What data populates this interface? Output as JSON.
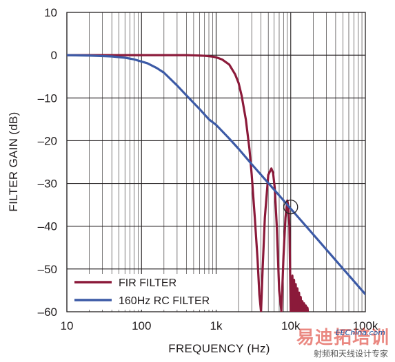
{
  "chart_data": {
    "type": "line",
    "title": "",
    "xlabel": "FREQUENCY (Hz)",
    "ylabel": "FILTER GAIN (dB)",
    "xscale": "log",
    "xlim": [
      10,
      100000
    ],
    "ylim": [
      -60,
      10
    ],
    "xticks": [
      {
        "value": 10,
        "label": "10"
      },
      {
        "value": 100,
        "label": "100"
      },
      {
        "value": 1000,
        "label": "1k"
      },
      {
        "value": 10000,
        "label": "10k"
      },
      {
        "value": 100000,
        "label": "100k"
      }
    ],
    "yticks": [
      {
        "value": 10,
        "label": "10"
      },
      {
        "value": 0,
        "label": "0"
      },
      {
        "value": -10,
        "label": "–10"
      },
      {
        "value": -20,
        "label": "–20"
      },
      {
        "value": -30,
        "label": "–30"
      },
      {
        "value": -40,
        "label": "–40"
      },
      {
        "value": -50,
        "label": "–50"
      },
      {
        "value": -60,
        "label": "–60"
      }
    ],
    "grid": true,
    "legend_position": "bottom-left",
    "series": [
      {
        "name": "FIR FILTER",
        "color": "#8b1a3a",
        "x": [
          10,
          50,
          100,
          200,
          300,
          400,
          500,
          600,
          700,
          800,
          900,
          1000,
          1200,
          1500,
          1800,
          2000,
          2200,
          2500,
          2800,
          3000,
          3300,
          3600,
          3800,
          4000,
          4200,
          4500,
          5000,
          5500,
          5800,
          6100,
          6500,
          7000,
          7500,
          8000,
          8500,
          9000,
          9300,
          9600,
          10000
        ],
        "values": [
          0,
          0,
          0,
          0,
          0,
          0,
          -0.05,
          -0.1,
          -0.15,
          -0.25,
          -0.35,
          -0.5,
          -1,
          -2.2,
          -4.5,
          -6.5,
          -9.5,
          -15,
          -22,
          -28,
          -38,
          -48,
          -56,
          -60,
          -50,
          -38,
          -28,
          -26.5,
          -27.5,
          -31,
          -40,
          -55,
          -60,
          -47,
          -38,
          -34,
          -35.5,
          -40,
          -60
        ]
      },
      {
        "name": "160Hz RC FILTER",
        "color": "#3c5aa6",
        "x": [
          10,
          20,
          40,
          60,
          80,
          100,
          120,
          160,
          200,
          300,
          400,
          600,
          800,
          1000,
          1500,
          2000,
          3000,
          5000,
          7000,
          10000,
          20000,
          50000,
          100000
        ],
        "values": [
          0,
          -0.1,
          -0.3,
          -0.6,
          -1,
          -1.5,
          -1.9,
          -3,
          -4.1,
          -7.1,
          -9.4,
          -12.6,
          -15,
          -16.3,
          -19.5,
          -21.9,
          -25.5,
          -29.9,
          -32.8,
          -35.9,
          -41.9,
          -49.9,
          -55.9
        ]
      }
    ],
    "lobes": {
      "note_x_start": 10000,
      "peaks_db": [
        -44,
        -46,
        -48,
        -50,
        -52,
        -54,
        -56,
        -57,
        -58,
        -59
      ],
      "x_end": 17000
    },
    "annotations": [
      {
        "type": "circle",
        "x": 10000,
        "y": -35.5
      }
    ]
  },
  "watermark": {
    "big": "易迪拓培训",
    "url": "EEChina.com",
    "small": "射频和天线设计专家"
  }
}
